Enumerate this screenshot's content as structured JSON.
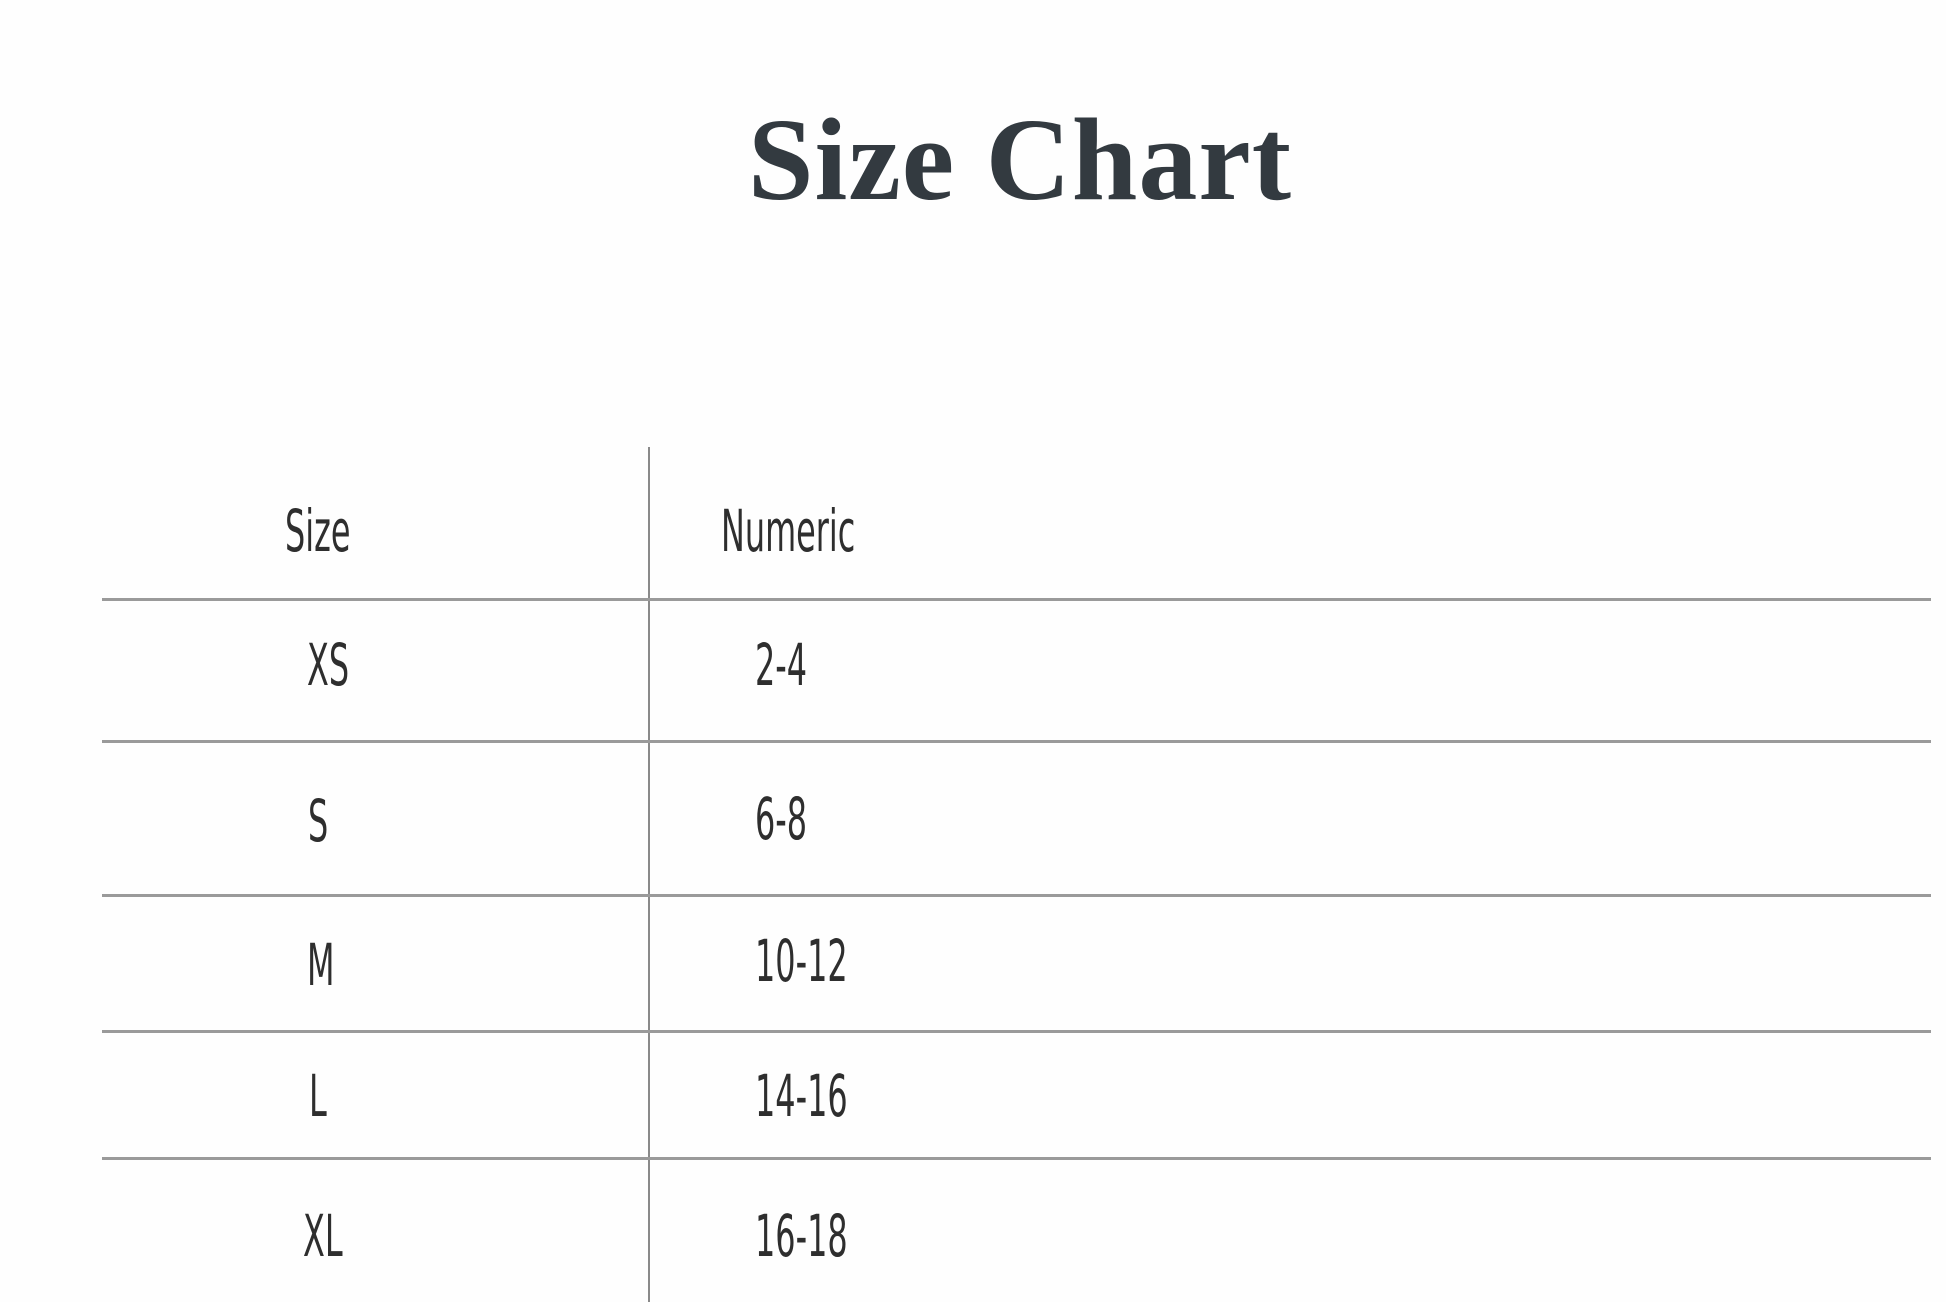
{
  "title": "Size Chart",
  "table": {
    "headers": [
      "Size",
      "Numeric"
    ],
    "rows": [
      [
        "XS",
        "2-4"
      ],
      [
        "S",
        "6-8"
      ],
      [
        "M",
        "10-12"
      ],
      [
        "L",
        "14-16"
      ],
      [
        "XL",
        "16-18"
      ]
    ]
  }
}
